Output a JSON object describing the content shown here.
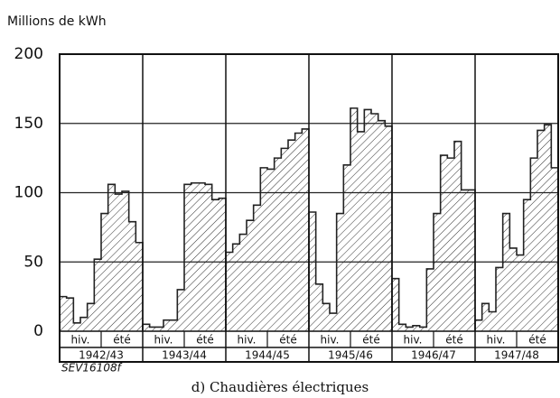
{
  "chart_data": {
    "type": "step-area",
    "ylabel": "Millions de kWh",
    "caption": "d) Chaudières électriques",
    "code": "SEV16108f",
    "ylim": [
      0,
      200
    ],
    "yticks": [
      0,
      50,
      100,
      150,
      200
    ],
    "grid": true,
    "color": "#222222",
    "groups": [
      {
        "label": "1942/43",
        "winter": "hiv.",
        "summer": "été",
        "values": [
          25,
          24,
          6,
          10,
          20,
          52,
          85,
          106,
          99,
          101,
          79,
          64
        ]
      },
      {
        "label": "1943/44",
        "winter": "hiv.",
        "summer": "été",
        "values": [
          5,
          3,
          3,
          8,
          8,
          30,
          106,
          107,
          107,
          106,
          95,
          96
        ]
      },
      {
        "label": "1944/45",
        "winter": "hiv.",
        "summer": "été",
        "values": [
          57,
          63,
          70,
          80,
          91,
          118,
          117,
          125,
          132,
          138,
          143,
          146
        ]
      },
      {
        "label": "1945/46",
        "winter": "hiv.",
        "summer": "été",
        "values": [
          86,
          34,
          20,
          13,
          85,
          120,
          161,
          144,
          160,
          157,
          152,
          148
        ]
      },
      {
        "label": "1946/47",
        "winter": "hiv.",
        "summer": "été",
        "values": [
          38,
          5,
          3,
          4,
          3,
          45,
          85,
          127,
          125,
          137,
          102,
          102
        ]
      },
      {
        "label": "1947/48",
        "winter": "hiv.",
        "summer": "été",
        "values": [
          8,
          20,
          14,
          46,
          85,
          60,
          55,
          95,
          125,
          145,
          149,
          118
        ]
      }
    ]
  }
}
